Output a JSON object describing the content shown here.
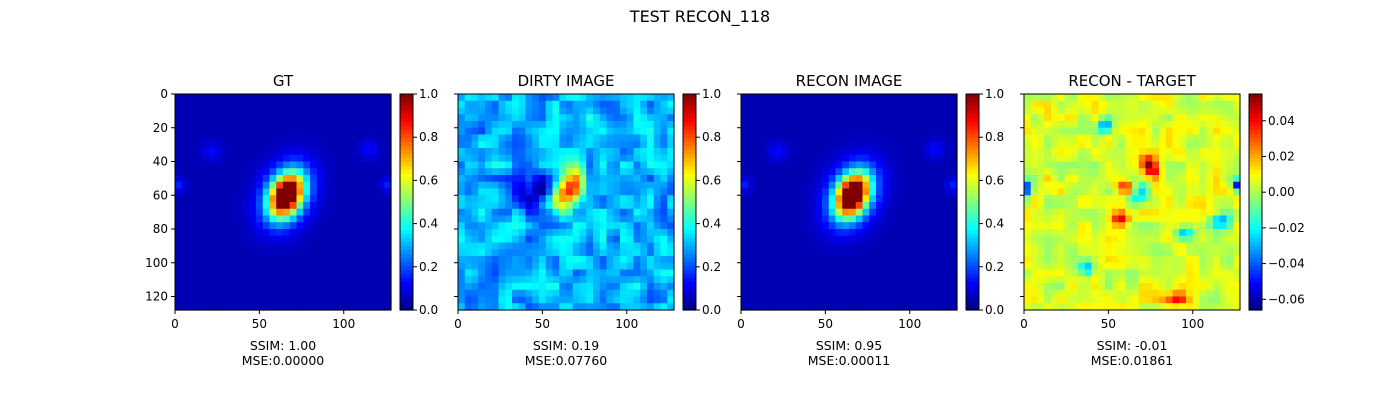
{
  "figure": {
    "title": "TEST RECON_118"
  },
  "colors": {
    "jet": [
      "#00007f",
      "#0000ff",
      "#007fff",
      "#00ffff",
      "#7fff7f",
      "#ffff00",
      "#ff7f00",
      "#ff0000",
      "#7f0000"
    ]
  },
  "chart_data": [
    {
      "type": "heatmap",
      "title": "GT",
      "caption": [
        "SSIM: 1.00",
        "MSE:0.00000"
      ],
      "xlim": [
        0,
        128
      ],
      "ylim": [
        128,
        0
      ],
      "xticks": [
        0,
        50,
        100
      ],
      "yticks": [
        0,
        20,
        40,
        60,
        80,
        100,
        120
      ],
      "show_ytick_labels": true,
      "colorbar": {
        "range": [
          0.0,
          1.0
        ],
        "ticks": [
          0.0,
          0.2,
          0.4,
          0.6,
          0.8,
          1.0
        ],
        "labels": [
          "0.0",
          "0.2",
          "0.4",
          "0.6",
          "0.8",
          "1.0"
        ]
      },
      "background_value": 0.05,
      "blobs": [
        {
          "x": 66,
          "y": 60,
          "sx": 6,
          "sy": 9,
          "rot": 25,
          "amp": 0.95
        },
        {
          "x": 66,
          "y": 60,
          "sx": 10,
          "sy": 14,
          "rot": 25,
          "amp": 0.3
        },
        {
          "x": 22,
          "y": 34,
          "sx": 4,
          "sy": 4,
          "rot": 0,
          "amp": 0.08
        },
        {
          "x": 115,
          "y": 33,
          "sx": 4,
          "sy": 4,
          "rot": 0,
          "amp": 0.08
        },
        {
          "x": 2,
          "y": 54,
          "sx": 3,
          "sy": 3,
          "rot": 0,
          "amp": 0.1
        },
        {
          "x": 126,
          "y": 54,
          "sx": 3,
          "sy": 3,
          "rot": 0,
          "amp": 0.1
        }
      ]
    },
    {
      "type": "heatmap",
      "title": "DIRTY IMAGE",
      "caption": [
        "SSIM: 0.19",
        "MSE:0.07760"
      ],
      "xlim": [
        0,
        128
      ],
      "ylim": [
        128,
        0
      ],
      "xticks": [
        0,
        50,
        100
      ],
      "yticks": [
        0,
        20,
        40,
        60,
        80,
        100,
        120
      ],
      "show_ytick_labels": false,
      "colorbar": {
        "range": [
          0.0,
          1.0
        ],
        "ticks": [
          0.0,
          0.2,
          0.4,
          0.6,
          0.8,
          1.0
        ],
        "labels": [
          "0.0",
          "0.2",
          "0.4",
          "0.6",
          "0.8",
          "1.0"
        ]
      },
      "background_value": 0.3,
      "noise": 0.11,
      "seed": 7,
      "blobs": [
        {
          "x": 65,
          "y": 58,
          "sx": 5,
          "sy": 9,
          "rot": 25,
          "amp": 0.6
        },
        {
          "x": 45,
          "y": 58,
          "sx": 8,
          "sy": 8,
          "rot": 0,
          "amp": -0.25
        }
      ]
    },
    {
      "type": "heatmap",
      "title": "RECON IMAGE",
      "caption": [
        "SSIM: 0.95",
        "MSE:0.00011"
      ],
      "xlim": [
        0,
        128
      ],
      "ylim": [
        128,
        0
      ],
      "xticks": [
        0,
        50,
        100
      ],
      "yticks": [
        0,
        20,
        40,
        60,
        80,
        100,
        120
      ],
      "show_ytick_labels": false,
      "colorbar": {
        "range": [
          0.0,
          1.0
        ],
        "ticks": [
          0.0,
          0.2,
          0.4,
          0.6,
          0.8,
          1.0
        ],
        "labels": [
          "0.0",
          "0.2",
          "0.4",
          "0.6",
          "0.8",
          "1.0"
        ]
      },
      "background_value": 0.05,
      "blobs": [
        {
          "x": 66,
          "y": 60,
          "sx": 6,
          "sy": 9,
          "rot": 25,
          "amp": 0.95
        },
        {
          "x": 66,
          "y": 60,
          "sx": 10,
          "sy": 14,
          "rot": 25,
          "amp": 0.3
        },
        {
          "x": 22,
          "y": 34,
          "sx": 4,
          "sy": 4,
          "rot": 0,
          "amp": 0.08
        },
        {
          "x": 115,
          "y": 33,
          "sx": 4,
          "sy": 4,
          "rot": 0,
          "amp": 0.08
        },
        {
          "x": 2,
          "y": 54,
          "sx": 3,
          "sy": 3,
          "rot": 0,
          "amp": 0.1
        },
        {
          "x": 126,
          "y": 54,
          "sx": 3,
          "sy": 3,
          "rot": 0,
          "amp": 0.1
        }
      ]
    },
    {
      "type": "heatmap",
      "title": "RECON - TARGET",
      "caption": [
        "SSIM: -0.01",
        "MSE:0.01861"
      ],
      "xlim": [
        0,
        128
      ],
      "ylim": [
        128,
        0
      ],
      "xticks": [
        0,
        50,
        100
      ],
      "yticks": [
        0,
        20,
        40,
        60,
        80,
        100,
        120
      ],
      "show_ytick_labels": false,
      "colorbar": {
        "range": [
          -0.066,
          0.055
        ],
        "ticks": [
          -0.06,
          -0.04,
          -0.02,
          0.0,
          0.02,
          0.04
        ],
        "labels": [
          "−0.06",
          "−0.04",
          "−0.02",
          "0.00",
          "0.02",
          "0.04"
        ]
      },
      "background_value": 0.005,
      "noise": 0.01,
      "seed": 31,
      "blobs": [
        {
          "x": 75,
          "y": 43,
          "sx": 3,
          "sy": 5,
          "rot": -35,
          "amp": 0.05
        },
        {
          "x": 62,
          "y": 56,
          "sx": 5,
          "sy": 2.5,
          "rot": 10,
          "amp": 0.05
        },
        {
          "x": 57,
          "y": 74,
          "sx": 4,
          "sy": 3,
          "rot": 0,
          "amp": 0.035
        },
        {
          "x": 68,
          "y": 58,
          "sx": 4,
          "sy": 4,
          "rot": 0,
          "amp": -0.04
        },
        {
          "x": 48,
          "y": 19,
          "sx": 3,
          "sy": 3,
          "rot": 0,
          "amp": -0.04
        },
        {
          "x": 1,
          "y": 56,
          "sx": 2.5,
          "sy": 2.5,
          "rot": 0,
          "amp": -0.06
        },
        {
          "x": 127,
          "y": 54,
          "sx": 2.5,
          "sy": 2.5,
          "rot": 0,
          "amp": -0.06
        },
        {
          "x": 95,
          "y": 82,
          "sx": 4,
          "sy": 3,
          "rot": 0,
          "amp": -0.035
        },
        {
          "x": 116,
          "y": 75,
          "sx": 4,
          "sy": 3,
          "rot": 0,
          "amp": -0.035
        },
        {
          "x": 37,
          "y": 104,
          "sx": 3,
          "sy": 3,
          "rot": 0,
          "amp": -0.04
        },
        {
          "x": 90,
          "y": 122,
          "sx": 6,
          "sy": 3,
          "rot": 0,
          "amp": 0.03
        }
      ]
    }
  ]
}
